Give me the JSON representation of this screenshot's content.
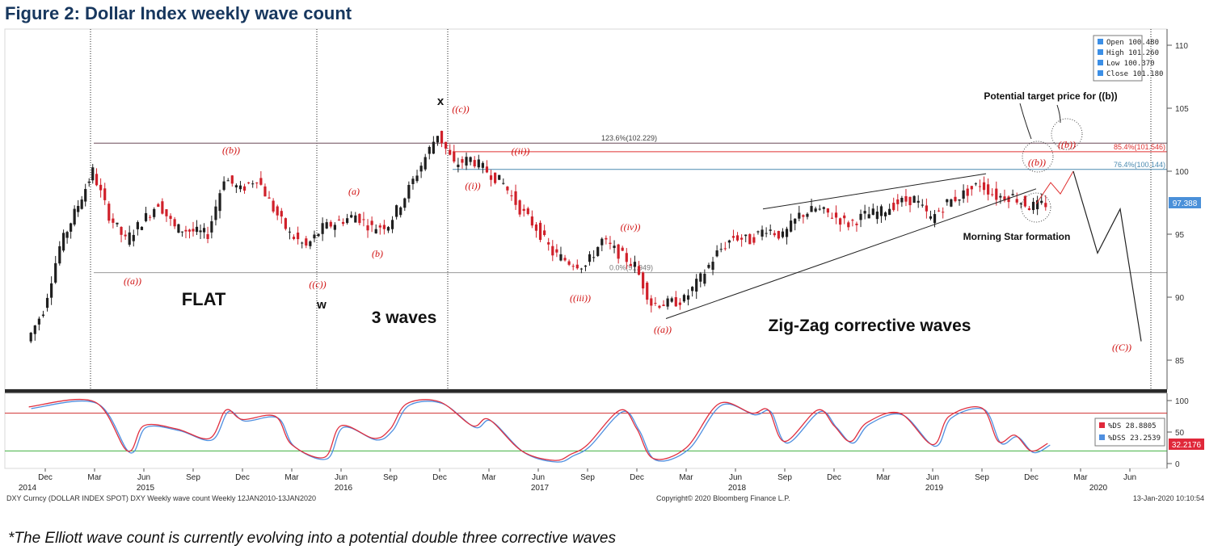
{
  "figure_title": "Figure 2: Dollar Index weekly wave count",
  "footnote": "*The Elliott wave count is currently evolving into a potential double three corrective waves",
  "colors": {
    "up_candle": "#1f1f1f",
    "down_candle": "#d0202a",
    "fib_123_line": "#6b4a59",
    "fib_854_line": "#e03030",
    "fib_764_line": "#4a8ab0",
    "support_line": "#999999",
    "stoch_ds": "#e03040",
    "stoch_dss": "#4f8fe0",
    "stoch_upper": "#d03030",
    "stoch_lower": "#40b040",
    "last_price_box": "#4a90d9",
    "stoch_box": "#e0283a",
    "wave_label": "#d01010",
    "title": "#17375e"
  },
  "legend": {
    "open": "Open  100.480",
    "high": "High  101.260",
    "low": "Low   100.370",
    "close": "Close 101.180"
  },
  "stoch_legend": {
    "ds": "%DS   28.8805",
    "dss": "%DSS  23.2539"
  },
  "annotations": {
    "flat": "FLAT",
    "three_waves": "3 waves",
    "zigzag": "Zig-Zag corrective waves",
    "w": "w",
    "x": "x",
    "target": "Potential target price for ((b))",
    "morning_star": "Morning Star formation"
  },
  "wave_labels": [
    {
      "text": "((b))"
    },
    {
      "text": "((a))"
    },
    {
      "text": "((c))"
    },
    {
      "text": "(a)"
    },
    {
      "text": "(b)"
    },
    {
      "text": "((c))"
    },
    {
      "text": "((ii))"
    },
    {
      "text": "((i))"
    },
    {
      "text": "((iv))"
    },
    {
      "text": "((iii))"
    },
    {
      "text": "((a))"
    },
    {
      "text": "((b))"
    },
    {
      "text": "((b))"
    },
    {
      "text": "((C))"
    }
  ],
  "fib_labels": {
    "fib_123": "123.6%(102.229)",
    "fib_854": "85.4%(101.546)",
    "fib_764": "76.4%(100.144)",
    "fib_00": "0.0%(91.949)"
  },
  "last_price": "97.388",
  "stoch_last": "32.2176",
  "x_axis": {
    "months": [
      "Dec",
      "Mar",
      "Jun",
      "Sep",
      "Dec",
      "Mar",
      "Jun",
      "Sep",
      "Dec",
      "Mar",
      "Jun",
      "Sep",
      "Dec",
      "Mar",
      "Jun",
      "Sep",
      "Dec",
      "Mar",
      "Jun",
      "Sep",
      "Dec",
      "Mar",
      "Jun"
    ],
    "years": [
      "2014",
      "2015",
      "2016",
      "2017",
      "2018",
      "2019",
      "2020"
    ]
  },
  "footer": {
    "left": "DXY Curncy (DOLLAR INDEX SPOT) DXY Weekly wave count  Weekly 12JAN2010-13JAN2020",
    "center": "Copyright© 2020 Bloomberg Finance L.P.",
    "right": "13-Jan-2020 10:10:54"
  },
  "chart_data": [
    {
      "type": "candlestick",
      "title": "DXY Curncy (DOLLAR INDEX SPOT) Weekly",
      "y_axis": {
        "ticks": [
          85,
          90,
          95,
          100,
          105,
          110
        ],
        "range": [
          83,
          111
        ]
      },
      "last_bar": {
        "open": 100.48,
        "high": 101.26,
        "low": 100.37,
        "close": 101.18
      },
      "last_price": 97.388,
      "fib_levels": [
        {
          "label": "123.6%",
          "value": 102.229
        },
        {
          "label": "85.4%",
          "value": 101.546
        },
        {
          "label": "76.4%",
          "value": 100.144
        },
        {
          "label": "0.0%",
          "value": 91.949
        }
      ],
      "wave_path": [
        {
          "date": "2014-11",
          "close": 86.5
        },
        {
          "date": "2014-12",
          "close": 89.0
        },
        {
          "date": "2015-01",
          "close": 94.0
        },
        {
          "date": "2015-03",
          "close": 100.0
        },
        {
          "date": "2015-04",
          "close": 96.5
        },
        {
          "date": "2015-05",
          "close": 94.5
        },
        {
          "date": "2015-06",
          "close": 96.0
        },
        {
          "date": "2015-07",
          "close": 97.5
        },
        {
          "date": "2015-08",
          "close": 95.5
        },
        {
          "date": "2015-10",
          "close": 95.0
        },
        {
          "date": "2015-11",
          "close": 99.5
        },
        {
          "date": "2015-12",
          "close": 98.5
        },
        {
          "date": "2016-01",
          "close": 99.5
        },
        {
          "date": "2016-02",
          "close": 97.0
        },
        {
          "date": "2016-03",
          "close": 95.0
        },
        {
          "date": "2016-04",
          "close": 94.0
        },
        {
          "date": "2016-05",
          "close": 95.5
        },
        {
          "date": "2016-06",
          "close": 96.0
        },
        {
          "date": "2016-07",
          "close": 96.5
        },
        {
          "date": "2016-08",
          "close": 95.5
        },
        {
          "date": "2016-09",
          "close": 95.8
        },
        {
          "date": "2016-10",
          "close": 98.0
        },
        {
          "date": "2016-11",
          "close": 100.5
        },
        {
          "date": "2016-12",
          "close": 103.0
        },
        {
          "date": "2017-01",
          "close": 100.5
        },
        {
          "date": "2017-02",
          "close": 101.0
        },
        {
          "date": "2017-03",
          "close": 100.0
        },
        {
          "date": "2017-04",
          "close": 99.0
        },
        {
          "date": "2017-05",
          "close": 97.0
        },
        {
          "date": "2017-06",
          "close": 95.5
        },
        {
          "date": "2017-07",
          "close": 93.5
        },
        {
          "date": "2017-08",
          "close": 92.8
        },
        {
          "date": "2017-09",
          "close": 92.5
        },
        {
          "date": "2017-10",
          "close": 94.5
        },
        {
          "date": "2017-11",
          "close": 93.5
        },
        {
          "date": "2017-12",
          "close": 92.5
        },
        {
          "date": "2018-01",
          "close": 89.5
        },
        {
          "date": "2018-02",
          "close": 89.5
        },
        {
          "date": "2018-03",
          "close": 89.8
        },
        {
          "date": "2018-04",
          "close": 91.5
        },
        {
          "date": "2018-05",
          "close": 93.5
        },
        {
          "date": "2018-06",
          "close": 94.8
        },
        {
          "date": "2018-07",
          "close": 94.5
        },
        {
          "date": "2018-08",
          "close": 95.5
        },
        {
          "date": "2018-09",
          "close": 94.8
        },
        {
          "date": "2018-10",
          "close": 96.5
        },
        {
          "date": "2018-11",
          "close": 97.0
        },
        {
          "date": "2018-12",
          "close": 96.5
        },
        {
          "date": "2019-01",
          "close": 95.8
        },
        {
          "date": "2019-02",
          "close": 96.5
        },
        {
          "date": "2019-03",
          "close": 96.8
        },
        {
          "date": "2019-04",
          "close": 97.5
        },
        {
          "date": "2019-05",
          "close": 97.8
        },
        {
          "date": "2019-06",
          "close": 96.2
        },
        {
          "date": "2019-07",
          "close": 97.5
        },
        {
          "date": "2019-08",
          "close": 98.2
        },
        {
          "date": "2019-09",
          "close": 99.0
        },
        {
          "date": "2019-10",
          "close": 98.0
        },
        {
          "date": "2019-11",
          "close": 98.0
        },
        {
          "date": "2019-12",
          "close": 97.2
        },
        {
          "date": "2020-01",
          "close": 97.4
        }
      ],
      "projection_path": [
        {
          "date": "2020-01",
          "value": 97.4
        },
        {
          "date": "2020-02",
          "value": 99.0
        },
        {
          "date": "2020-03",
          "value": 100.0
        },
        {
          "date": "2020-05",
          "value": 93.5
        },
        {
          "date": "2020-06",
          "value": 97.0
        },
        {
          "date": "2020-08",
          "value": 86.5
        }
      ]
    },
    {
      "type": "line",
      "title": "Stochastic (%DS / %DSS)",
      "y_axis": {
        "ticks": [
          0,
          50,
          100
        ],
        "range": [
          -5,
          105
        ]
      },
      "reference_lines": [
        80,
        20
      ],
      "series": [
        {
          "name": "%DS",
          "last": 28.8805
        },
        {
          "name": "%DSS",
          "last": 23.2539
        }
      ],
      "last_value": 32.2176,
      "values": [
        {
          "date": "2014-11",
          "value": 90
        },
        {
          "date": "2015-03",
          "value": 98
        },
        {
          "date": "2015-05",
          "value": 20
        },
        {
          "date": "2015-06",
          "value": 60
        },
        {
          "date": "2015-08",
          "value": 55
        },
        {
          "date": "2015-10",
          "value": 40
        },
        {
          "date": "2015-11",
          "value": 85
        },
        {
          "date": "2015-12",
          "value": 70
        },
        {
          "date": "2016-02",
          "value": 75
        },
        {
          "date": "2016-03",
          "value": 30
        },
        {
          "date": "2016-05",
          "value": 10
        },
        {
          "date": "2016-06",
          "value": 60
        },
        {
          "date": "2016-08",
          "value": 40
        },
        {
          "date": "2016-09",
          "value": 55
        },
        {
          "date": "2016-10",
          "value": 95
        },
        {
          "date": "2016-12",
          "value": 98
        },
        {
          "date": "2017-02",
          "value": 60
        },
        {
          "date": "2017-03",
          "value": 70
        },
        {
          "date": "2017-05",
          "value": 20
        },
        {
          "date": "2017-07",
          "value": 5
        },
        {
          "date": "2017-08",
          "value": 15
        },
        {
          "date": "2017-09",
          "value": 30
        },
        {
          "date": "2017-11",
          "value": 85
        },
        {
          "date": "2017-12",
          "value": 55
        },
        {
          "date": "2018-01",
          "value": 8
        },
        {
          "date": "2018-03",
          "value": 25
        },
        {
          "date": "2018-05",
          "value": 95
        },
        {
          "date": "2018-07",
          "value": 80
        },
        {
          "date": "2018-08",
          "value": 85
        },
        {
          "date": "2018-09",
          "value": 35
        },
        {
          "date": "2018-11",
          "value": 85
        },
        {
          "date": "2018-12",
          "value": 60
        },
        {
          "date": "2019-01",
          "value": 35
        },
        {
          "date": "2019-02",
          "value": 65
        },
        {
          "date": "2019-04",
          "value": 80
        },
        {
          "date": "2019-06",
          "value": 30
        },
        {
          "date": "2019-07",
          "value": 75
        },
        {
          "date": "2019-09",
          "value": 88
        },
        {
          "date": "2019-10",
          "value": 35
        },
        {
          "date": "2019-11",
          "value": 45
        },
        {
          "date": "2019-12",
          "value": 20
        },
        {
          "date": "2020-01",
          "value": 32
        }
      ]
    }
  ]
}
